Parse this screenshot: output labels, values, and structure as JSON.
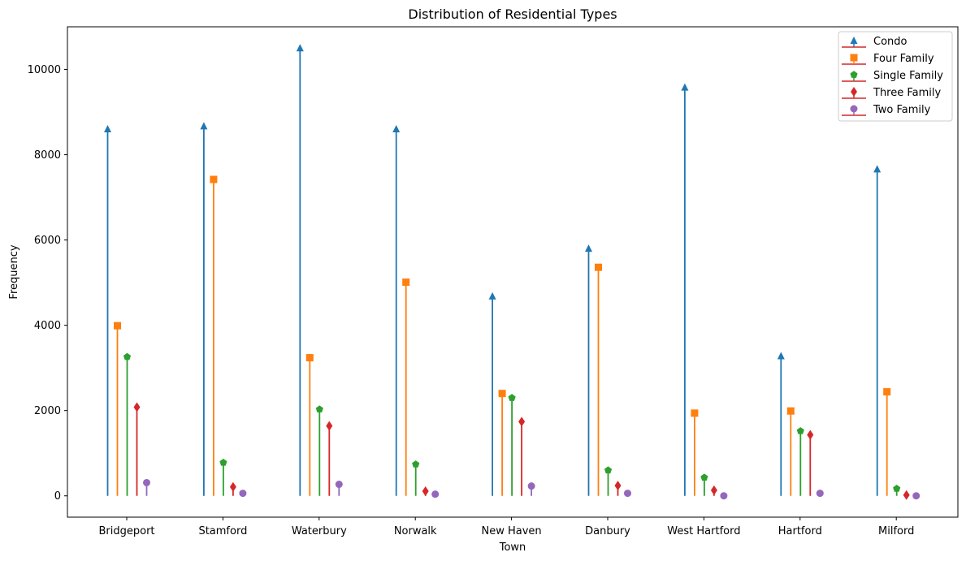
{
  "chart_data": {
    "type": "stem",
    "title": "Distribution of Residential Types",
    "xlabel": "Town",
    "ylabel": "Frequency",
    "ylim": [
      -500,
      11000
    ],
    "yticks": [
      0,
      2000,
      4000,
      6000,
      8000,
      10000
    ],
    "legend_position": "top-right",
    "grid": false,
    "categories": [
      "Bridgeport",
      "Stamford",
      "Waterbury",
      "Norwalk",
      "New Haven",
      "Danbury",
      "West Hartford",
      "Hartford",
      "Milford"
    ],
    "series": [
      {
        "name": "Condo",
        "color": "#1f77b4",
        "marker": "triangle",
        "values": [
          8600,
          8670,
          10500,
          8600,
          4680,
          5800,
          9580,
          3280,
          7660
        ]
      },
      {
        "name": "Four Family",
        "color": "#ff7f0e",
        "marker": "square",
        "values": [
          3990,
          7420,
          3240,
          5010,
          2400,
          5360,
          1940,
          1990,
          2440
        ]
      },
      {
        "name": "Single Family",
        "color": "#2ca02c",
        "marker": "pentagon",
        "values": [
          3260,
          780,
          2030,
          740,
          2300,
          600,
          430,
          1520,
          170
        ]
      },
      {
        "name": "Three Family",
        "color": "#d62728",
        "marker": "diamond",
        "values": [
          2080,
          210,
          1640,
          110,
          1740,
          240,
          130,
          1430,
          20
        ]
      },
      {
        "name": "Two Family",
        "color": "#9467bd",
        "marker": "circle",
        "values": [
          310,
          60,
          270,
          40,
          230,
          60,
          0,
          60,
          0
        ]
      }
    ]
  }
}
